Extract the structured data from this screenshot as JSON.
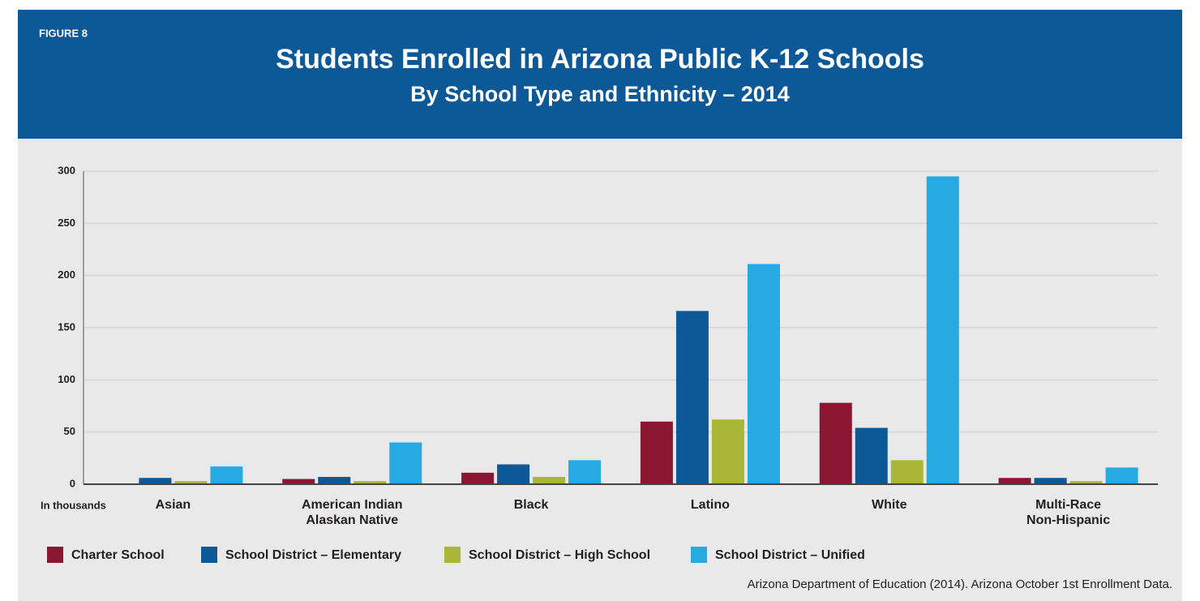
{
  "chart_data": {
    "type": "bar",
    "label": "FIGURE 8",
    "title": "Students Enrolled in Arizona Public K-12 Schools",
    "subtitle": "By School Type and Ethnicity – 2014",
    "y_axis_note": "In thousands",
    "source": "Arizona Department of Education (2014). Arizona October 1st Enrollment Data.",
    "categories": [
      "Asian",
      "American Indian\nAlaskan Native",
      "Black",
      "Latino",
      "White",
      "Multi-Race\nNon-Hispanic"
    ],
    "series": [
      {
        "name": "Charter School",
        "color": "#8a1632",
        "values": [
          0,
          5,
          11,
          60,
          78,
          6
        ]
      },
      {
        "name": "School District – Elementary",
        "color": "#0d5896",
        "values": [
          6,
          7,
          19,
          166,
          54,
          6
        ]
      },
      {
        "name": "School District – High School",
        "color": "#a9b736",
        "values": [
          3,
          3,
          7,
          62,
          23,
          3
        ]
      },
      {
        "name": "School District – Unified",
        "color": "#27a9e1",
        "values": [
          17,
          40,
          23,
          211,
          295,
          16
        ]
      }
    ],
    "ylim": [
      0,
      300
    ],
    "yticks": [
      0,
      50,
      100,
      150,
      200,
      250,
      300
    ],
    "grid": true,
    "legend": "bottom"
  }
}
